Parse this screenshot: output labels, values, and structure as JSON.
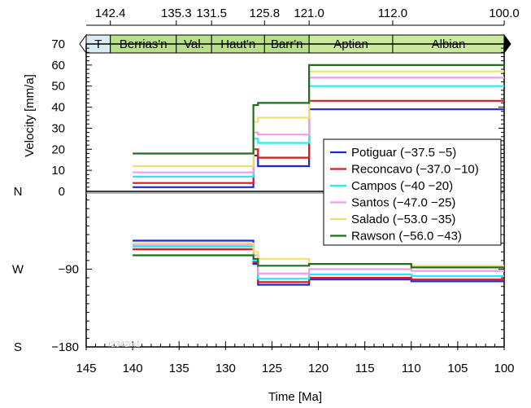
{
  "chart_data": {
    "type": "line",
    "xlabel": "Time [Ma]",
    "ylabel": "Velocity [mm/a]",
    "x_range": [
      145,
      100
    ],
    "x_ticks": [
      145,
      140,
      135,
      130,
      125,
      120,
      115,
      110,
      105,
      100
    ],
    "top_axis_ticks": [
      {
        "value": 142.4,
        "label": "142.4"
      },
      {
        "value": 135.3,
        "label": "135.3"
      },
      {
        "value": 131.5,
        "label": "131.5"
      },
      {
        "value": 125.8,
        "label": "125.8"
      },
      {
        "value": 121.0,
        "label": "121.0"
      },
      {
        "value": 112.0,
        "label": "112.0"
      },
      {
        "value": 100.0,
        "label": "100.0"
      }
    ],
    "stages": [
      {
        "label": "T",
        "from": 145,
        "to": 142.4,
        "color": "#dcecf7"
      },
      {
        "label": "Berrias'n",
        "from": 142.4,
        "to": 135.3,
        "color": "#b8e08a"
      },
      {
        "label": "Val.",
        "from": 135.3,
        "to": 131.5,
        "color": "#b8e08a"
      },
      {
        "label": "Haut'n",
        "from": 131.5,
        "to": 125.8,
        "color": "#b8e08a"
      },
      {
        "label": "Barr'n",
        "from": 125.8,
        "to": 121.0,
        "color": "#b8e08a"
      },
      {
        "label": "Aptian",
        "from": 121.0,
        "to": 112.0,
        "color": "#c9ea9a"
      },
      {
        "label": "Albian",
        "from": 112.0,
        "to": 100.0,
        "color": "#c9ea9a"
      }
    ],
    "velocity_panel": {
      "ylim": [
        0,
        70
      ],
      "y_ticks": [
        0,
        10,
        20,
        30,
        40,
        50,
        60,
        70
      ],
      "zero_label": "N"
    },
    "direction_panel": {
      "ylim": [
        -180,
        0
      ],
      "y_ticks": [
        {
          "value": 0,
          "label": "N"
        },
        {
          "value": -90,
          "label": "W"
        },
        {
          "value": -180,
          "label": "S"
        }
      ],
      "y_tick_values": [
        {
          "value": -90,
          "label": "−90"
        },
        {
          "value": -180,
          "label": "−180"
        }
      ]
    },
    "series": [
      {
        "name": "Potiguar (−37.5 −5)",
        "color": "#1a2ad6",
        "velocity": [
          [
            140,
            2
          ],
          [
            127,
            2
          ],
          [
            127,
            17
          ],
          [
            126.5,
            17
          ],
          [
            126.5,
            12
          ],
          [
            121,
            12
          ],
          [
            121,
            39
          ],
          [
            100,
            39
          ]
        ],
        "direction": [
          [
            140,
            -57
          ],
          [
            127,
            -57
          ],
          [
            127,
            -84
          ],
          [
            126.5,
            -84
          ],
          [
            126.5,
            -108
          ],
          [
            121,
            -108
          ],
          [
            121,
            -102
          ],
          [
            110,
            -102
          ],
          [
            110,
            -104
          ],
          [
            100,
            -104
          ]
        ]
      },
      {
        "name": "Reconcavo (−37.0 −10)",
        "color": "#d81a1a",
        "velocity": [
          [
            140,
            4
          ],
          [
            127,
            4
          ],
          [
            127,
            20
          ],
          [
            126.5,
            20
          ],
          [
            126.5,
            16
          ],
          [
            121,
            16
          ],
          [
            121,
            43
          ],
          [
            100,
            43
          ]
        ],
        "direction": [
          [
            140,
            -67
          ],
          [
            127,
            -67
          ],
          [
            127,
            -82
          ],
          [
            126.5,
            -82
          ],
          [
            126.5,
            -105
          ],
          [
            121,
            -105
          ],
          [
            121,
            -100
          ],
          [
            110,
            -100
          ],
          [
            110,
            -102
          ],
          [
            100,
            -102
          ]
        ]
      },
      {
        "name": "Campos (−40 −20)",
        "color": "#22eeee",
        "velocity": [
          [
            140,
            7
          ],
          [
            127,
            7
          ],
          [
            127,
            25
          ],
          [
            126.5,
            25
          ],
          [
            126.5,
            23
          ],
          [
            121,
            23
          ],
          [
            121,
            50
          ],
          [
            100,
            50
          ]
        ],
        "direction": [
          [
            140,
            -64
          ],
          [
            127,
            -64
          ],
          [
            127,
            -80
          ],
          [
            126.5,
            -80
          ],
          [
            126.5,
            -101
          ],
          [
            121,
            -101
          ],
          [
            121,
            -96
          ],
          [
            110,
            -96
          ],
          [
            110,
            -98
          ],
          [
            100,
            -98
          ]
        ]
      },
      {
        "name": "Santos (−47.0 −25)",
        "color": "#f09ce6",
        "velocity": [
          [
            140,
            9
          ],
          [
            127,
            9
          ],
          [
            127,
            28
          ],
          [
            126.5,
            28
          ],
          [
            126.5,
            27
          ],
          [
            121,
            27
          ],
          [
            121,
            54
          ],
          [
            100,
            54
          ]
        ],
        "direction": [
          [
            140,
            -62
          ],
          [
            127,
            -62
          ],
          [
            127,
            -74
          ],
          [
            126.5,
            -74
          ],
          [
            126.5,
            -95
          ],
          [
            121,
            -95
          ],
          [
            121,
            -90
          ],
          [
            110,
            -90
          ],
          [
            110,
            -92
          ],
          [
            100,
            -92
          ]
        ]
      },
      {
        "name": "Salado (−53.0 −35)",
        "color": "#f0e070",
        "velocity": [
          [
            140,
            12
          ],
          [
            127,
            12
          ],
          [
            127,
            33
          ],
          [
            126.5,
            33
          ],
          [
            126.5,
            35
          ],
          [
            121,
            35
          ],
          [
            121,
            57
          ],
          [
            100,
            57
          ]
        ],
        "direction": [
          [
            140,
            -60
          ],
          [
            127,
            -60
          ],
          [
            127,
            -70
          ],
          [
            126.5,
            -70
          ],
          [
            126.5,
            -78
          ],
          [
            121,
            -78
          ],
          [
            121,
            -84
          ],
          [
            110,
            -84
          ],
          [
            110,
            -86
          ],
          [
            100,
            -86
          ]
        ]
      },
      {
        "name": "Rawson (−56.0 −43)",
        "color": "#1f6e1f",
        "velocity": [
          [
            140,
            18
          ],
          [
            127,
            18
          ],
          [
            127,
            41
          ],
          [
            126.5,
            41
          ],
          [
            126.5,
            42
          ],
          [
            121,
            42
          ],
          [
            121,
            60
          ],
          [
            100,
            60
          ]
        ],
        "direction": [
          [
            140,
            -74
          ],
          [
            127,
            -74
          ],
          [
            127,
            -78
          ],
          [
            126.5,
            -78
          ],
          [
            126.5,
            -86
          ],
          [
            121,
            -86
          ],
          [
            121,
            -84
          ],
          [
            110,
            -84
          ],
          [
            110,
            -88
          ],
          [
            100,
            -88
          ]
        ]
      }
    ],
    "watermark": "r2342m1"
  }
}
